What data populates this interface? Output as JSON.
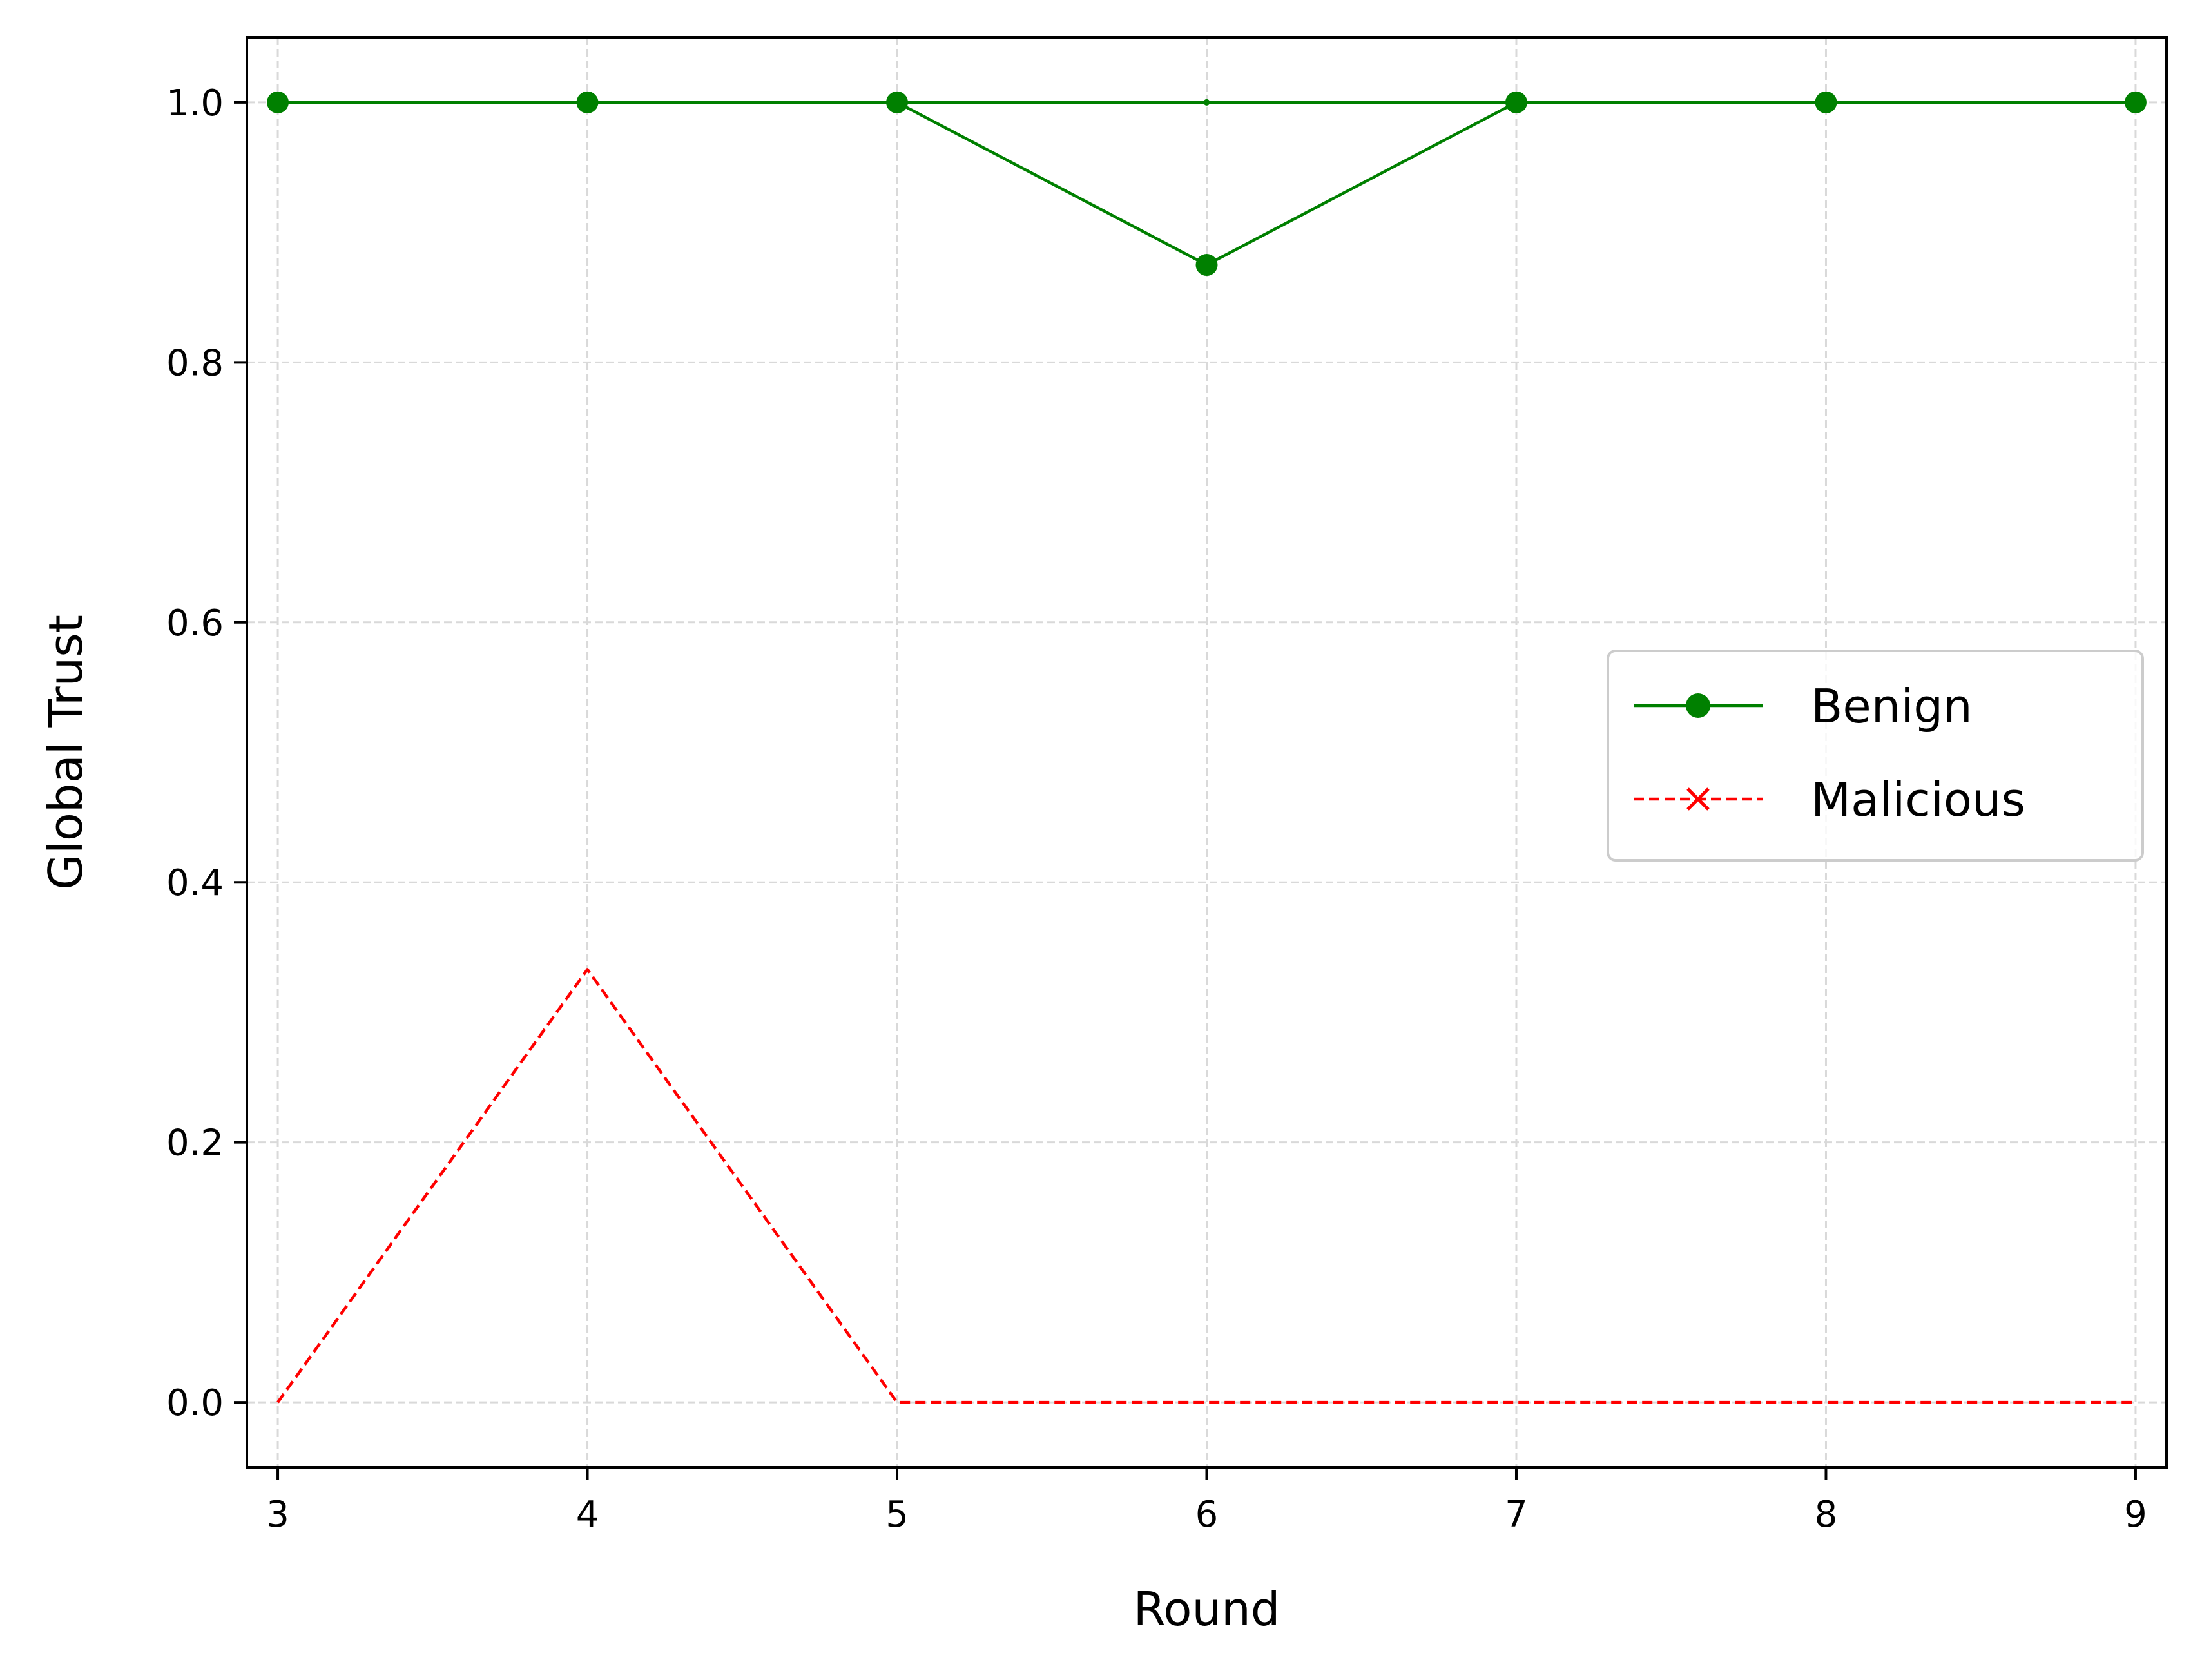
{
  "chart_data": {
    "type": "line",
    "xlabel": "Round",
    "ylabel": "Global Trust",
    "xlim": [
      2.9,
      9.1
    ],
    "ylim": [
      -0.05,
      1.05
    ],
    "xticks": [
      3,
      4,
      5,
      6,
      7,
      8,
      9
    ],
    "yticks": [
      0.0,
      0.2,
      0.4,
      0.6,
      0.8,
      1.0
    ],
    "ytick_labels": [
      "0.0",
      "0.2",
      "0.4",
      "0.6",
      "0.8",
      "1.0"
    ],
    "grid": true,
    "legend_position": "center-right",
    "series": [
      {
        "name": "Benign",
        "color": "#008000",
        "line_style": "solid",
        "marker": "circle",
        "x": [
          3,
          4,
          5,
          6,
          7,
          8,
          9
        ],
        "y": [
          1.0,
          1.0,
          1.0,
          0.875,
          1.0,
          1.0,
          1.0
        ]
      },
      {
        "name": "Benign",
        "color": "#008000",
        "line_style": "solid",
        "marker": "small-dot",
        "in_legend": false,
        "x": [
          3,
          4,
          5,
          6,
          7,
          8,
          9
        ],
        "y": [
          1.0,
          1.0,
          1.0,
          1.0,
          1.0,
          1.0,
          1.0
        ]
      },
      {
        "name": "Malicious",
        "color": "#ff0000",
        "line_style": "dashed",
        "marker": "x",
        "x": [
          3,
          4,
          5,
          6,
          7,
          8,
          9
        ],
        "y": [
          0.0,
          0.333,
          0.0,
          0.0,
          0.0,
          0.0,
          0.0
        ]
      }
    ]
  }
}
